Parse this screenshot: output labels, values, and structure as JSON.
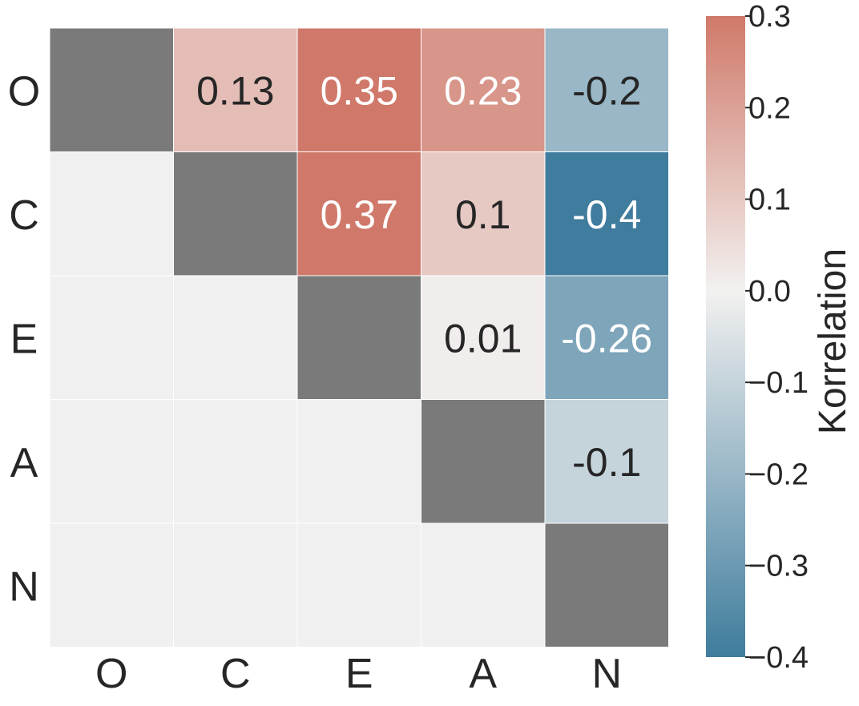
{
  "chart_data": {
    "type": "heatmap",
    "rows": [
      "O",
      "C",
      "E",
      "A",
      "N"
    ],
    "columns": [
      "O",
      "C",
      "E",
      "A",
      "N"
    ],
    "values": [
      [
        null,
        0.13,
        0.35,
        0.23,
        -0.2
      ],
      [
        null,
        null,
        0.37,
        0.1,
        -0.4
      ],
      [
        null,
        null,
        null,
        0.01,
        -0.26
      ],
      [
        null,
        null,
        null,
        null,
        -0.1
      ],
      [
        null,
        null,
        null,
        null,
        null
      ]
    ],
    "diagonal_color": "#7a7a7a",
    "masked_color": "#f0f0f0",
    "colormap": {
      "name": "diverging",
      "low_color": "#3f7c9d",
      "mid_color": "#f2f1f0",
      "high_color": "#d0796a"
    },
    "colorbar": {
      "label": "Korrelation",
      "vmin": -0.4,
      "vmax": 0.3,
      "ticks": [
        0.3,
        0.2,
        0.1,
        0.0,
        -0.1,
        -0.2,
        -0.3,
        -0.4
      ],
      "tick_labels": [
        "0.3",
        "0.2",
        "0.1",
        "0.0",
        "−0.1",
        "−0.2",
        "−0.3",
        "−0.4"
      ]
    }
  }
}
